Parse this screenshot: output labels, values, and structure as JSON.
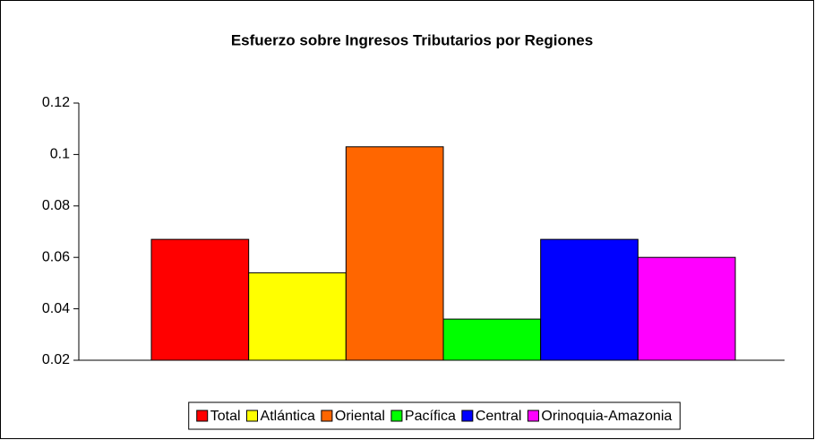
{
  "chart_data": {
    "type": "bar",
    "title": "Esfuerzo sobre Ingresos Tributarios por Regiones",
    "series": [
      {
        "name": "Total",
        "color": "#ff0000",
        "values": [
          0.067
        ]
      },
      {
        "name": "Atlántica",
        "color": "#ffff00",
        "values": [
          0.054
        ]
      },
      {
        "name": "Oriental",
        "color": "#ff6600",
        "values": [
          0.103
        ]
      },
      {
        "name": "Pacífica",
        "color": "#00ff00",
        "values": [
          0.036
        ]
      },
      {
        "name": "Central",
        "color": "#0000ff",
        "values": [
          0.067
        ]
      },
      {
        "name": "Orinoquia-Amazonia",
        "color": "#ff00ff",
        "values": [
          0.06
        ]
      }
    ],
    "ylim": [
      0.02,
      0.12
    ],
    "yticks": [
      0.02,
      0.04,
      0.06,
      0.08,
      0.1,
      0.12
    ],
    "grid": false,
    "legend": "bottom"
  }
}
